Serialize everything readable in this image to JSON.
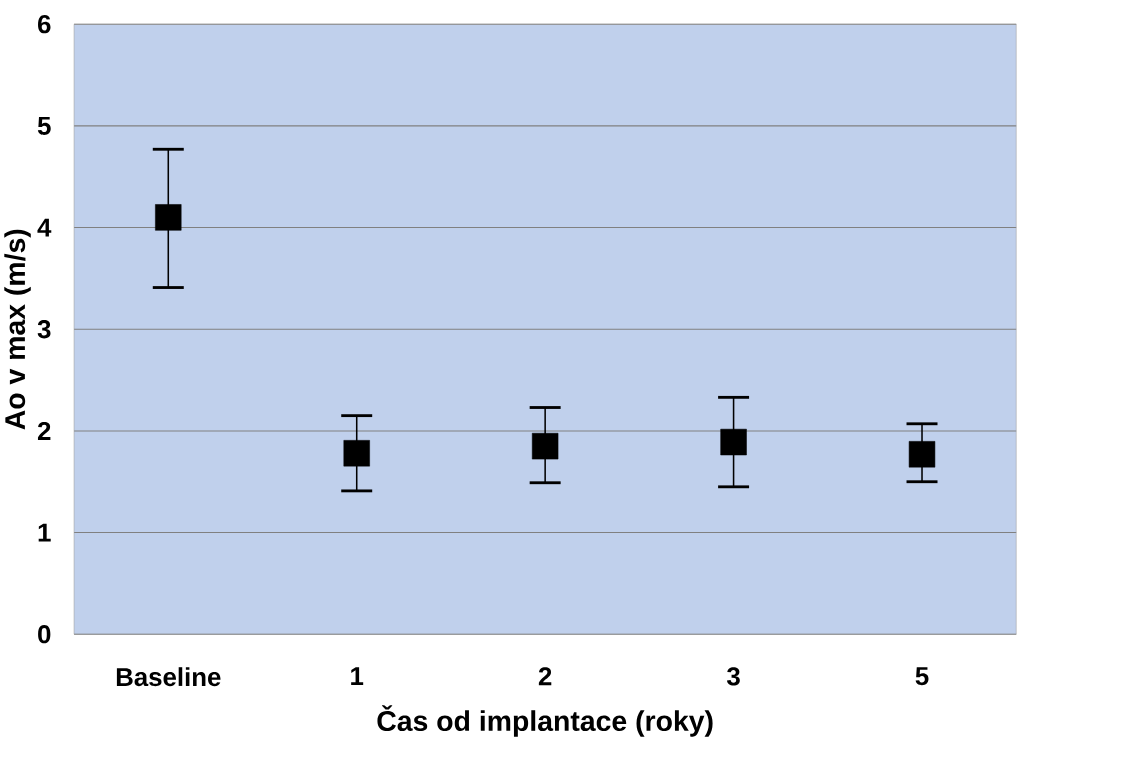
{
  "chart_data": {
    "type": "scatter",
    "xlabel": "Čas od implantace (roky)",
    "ylabel": "Ao v max (m/s)",
    "categories": [
      "Baseline",
      "1",
      "2",
      "3",
      "5"
    ],
    "series": [
      {
        "color": "#000000",
        "values": [
          4.1,
          1.78,
          1.85,
          1.89,
          1.77
        ],
        "errors": [
          [
            3.41,
            4.77
          ],
          [
            1.41,
            2.15
          ],
          [
            1.49,
            2.23
          ],
          [
            1.45,
            2.33
          ],
          [
            1.5,
            2.07
          ]
        ]
      }
    ],
    "ylim": [
      0,
      6
    ],
    "yticks": [
      0,
      1,
      2,
      3,
      4,
      5,
      6
    ],
    "grid": "y",
    "marker": "square"
  }
}
